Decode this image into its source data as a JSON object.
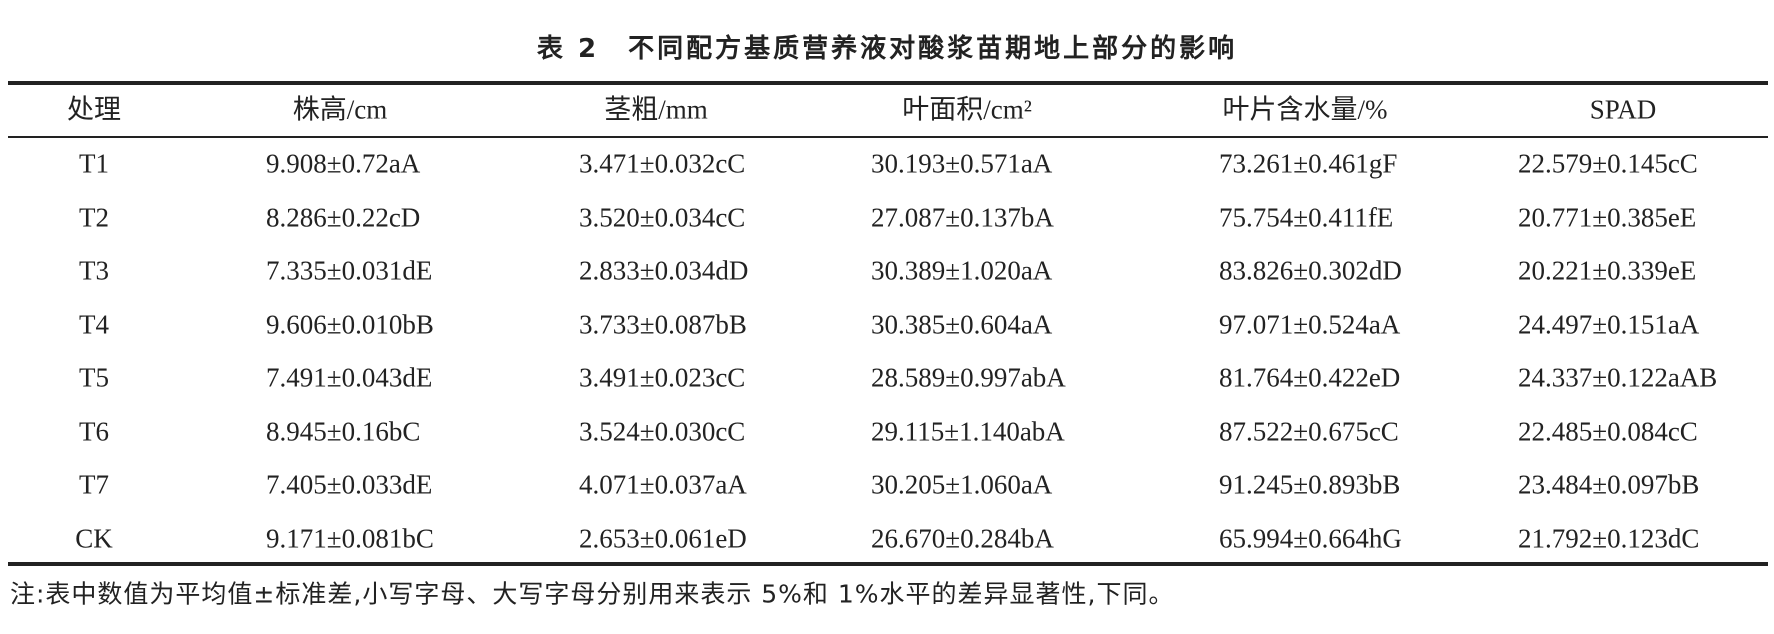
{
  "title": "表 2　不同配方基质营养液对酸浆苗期地上部分的影响",
  "table": {
    "header": [
      "处理",
      "株高/cm",
      "茎粗/mm",
      "叶面积/cm²",
      "叶片含水量/%",
      "SPAD"
    ],
    "rows": [
      [
        "T1",
        "9.908±0.72aA",
        "3.471±0.032cC",
        "30.193±0.571aA",
        "73.261±0.461gF",
        "22.579±0.145cC"
      ],
      [
        "T2",
        "8.286±0.22cD",
        "3.520±0.034cC",
        "27.087±0.137bA",
        "75.754±0.411fE",
        "20.771±0.385eE"
      ],
      [
        "T3",
        "7.335±0.031dE",
        "2.833±0.034dD",
        "30.389±1.020aA",
        "83.826±0.302dD",
        "20.221±0.339eE"
      ],
      [
        "T4",
        "9.606±0.010bB",
        "3.733±0.087bB",
        "30.385±0.604aA",
        "97.071±0.524aA",
        "24.497±0.151aA"
      ],
      [
        "T5",
        "7.491±0.043dE",
        "3.491±0.023cC",
        "28.589±0.997abA",
        "81.764±0.422eD",
        "24.337±0.122aAB"
      ],
      [
        "T6",
        "8.945±0.16bC",
        "3.524±0.030cC",
        "29.115±1.140abA",
        "87.522±0.675cC",
        "22.485±0.084cC"
      ],
      [
        "T7",
        "7.405±0.033dE",
        "4.071±0.037aA",
        "30.205±1.060aA",
        "91.245±0.893bB",
        "23.484±0.097bB"
      ],
      [
        "CK",
        "9.171±0.081bC",
        "2.653±0.061eD",
        "26.670±0.284bA",
        "65.994±0.664hG",
        "21.792±0.123dC"
      ]
    ]
  },
  "note": "注:表中数值为平均值±标准差,小写字母、大写字母分别用来表示 5%和 1%水平的差异显著性,下同。"
}
